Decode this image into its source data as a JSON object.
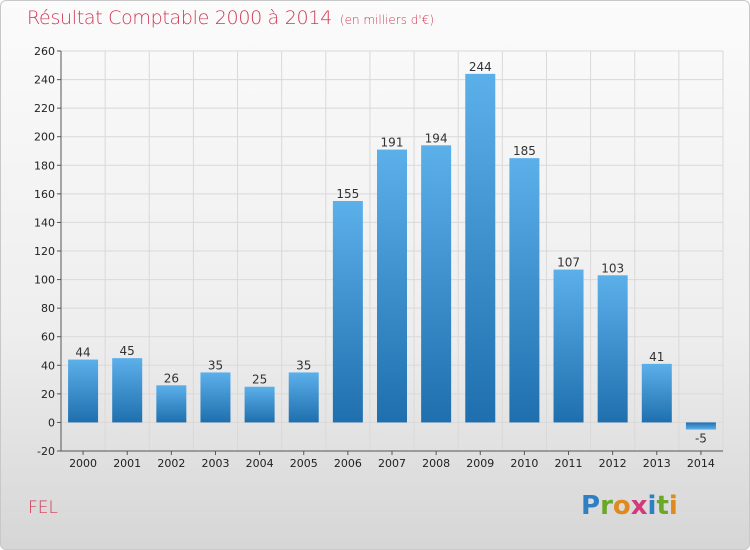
{
  "header": {
    "title": "Résultat Comptable 2000 à 2014",
    "subtitle": "(en milliers d'€)"
  },
  "footer": {
    "commune": "FEL",
    "logo_letters": [
      "P",
      "r",
      "o",
      "x",
      "i",
      "t",
      "i"
    ],
    "logo_colors": [
      "#2e7fc4",
      "#6aa82a",
      "#e08a1e",
      "#d23a7a",
      "#2e7fc4",
      "#6aa82a",
      "#e08a1e"
    ]
  },
  "chart_data": {
    "type": "bar",
    "title": "Résultat Comptable 2000 à 2014",
    "subtitle": "(en milliers d'€)",
    "categories": [
      "2000",
      "2001",
      "2002",
      "2003",
      "2004",
      "2005",
      "2006",
      "2007",
      "2008",
      "2009",
      "2010",
      "2011",
      "2012",
      "2013",
      "2014"
    ],
    "values": [
      44,
      45,
      26,
      35,
      25,
      35,
      155,
      191,
      194,
      244,
      185,
      107,
      103,
      41,
      -5
    ],
    "value_labels": [
      "44",
      "45",
      "26",
      "35",
      "25",
      "35",
      "155",
      "191",
      "194",
      "244",
      "185",
      "107",
      "103",
      "41",
      "-5"
    ],
    "ylim": [
      -20,
      260
    ],
    "yticks": [
      -20,
      0,
      20,
      40,
      60,
      80,
      100,
      120,
      140,
      160,
      180,
      200,
      220,
      240,
      260
    ],
    "ytick_labels": [
      "-20",
      "0",
      "20",
      "40",
      "60",
      "80",
      "100",
      "120",
      "140",
      "160",
      "180",
      "200",
      "220",
      "240",
      "260"
    ],
    "grid": true,
    "colors": {
      "bar_light": "#5aaee8",
      "bar_dark": "#1f6fae",
      "grid": "#d9d9d9"
    }
  }
}
